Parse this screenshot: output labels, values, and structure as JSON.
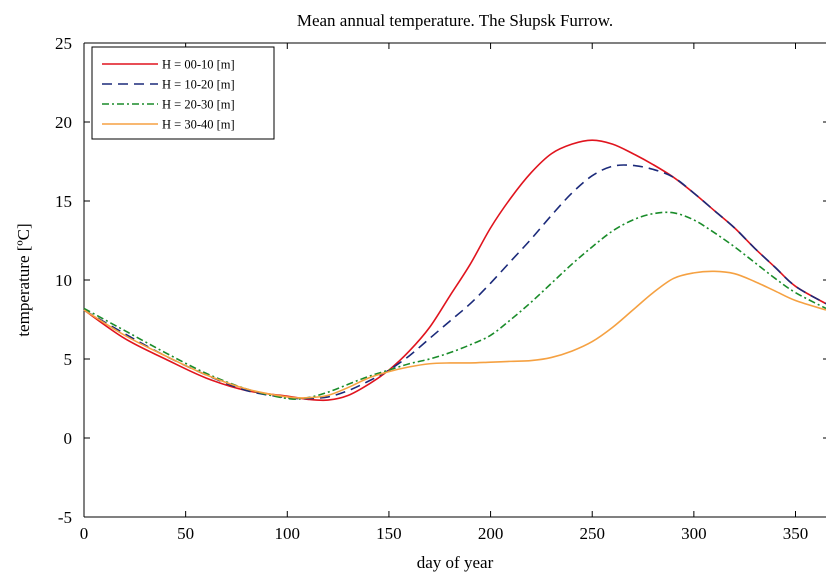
{
  "chart_data": {
    "type": "line",
    "title": "Mean annual temperature. The Słupsk Furrow.",
    "xlabel": "day of year",
    "ylabel": "temperature [ºC]",
    "xlim": [
      0,
      365
    ],
    "ylim": [
      -5,
      25
    ],
    "xticks": [
      0,
      50,
      100,
      150,
      200,
      250,
      300,
      350
    ],
    "xtick_labels": [
      "0",
      "50",
      "100",
      "150",
      "200",
      "250",
      "300",
      "350"
    ],
    "yticks": [
      -5,
      0,
      5,
      10,
      15,
      20,
      25
    ],
    "ytick_labels": [
      "-5",
      "0",
      "5",
      "10",
      "15",
      "20",
      "25"
    ],
    "grid": false,
    "legend_position": "top-left",
    "x": [
      0,
      20,
      40,
      60,
      80,
      100,
      110,
      120,
      130,
      140,
      150,
      160,
      170,
      180,
      190,
      200,
      210,
      220,
      230,
      240,
      250,
      260,
      270,
      280,
      290,
      300,
      310,
      320,
      330,
      340,
      350,
      365
    ],
    "series": [
      {
        "name": "H = 00-10 [m]",
        "color": "#e0141e",
        "dash": "solid",
        "values": [
          8.1,
          6.3,
          5.0,
          3.8,
          3.0,
          2.65,
          2.45,
          2.4,
          2.7,
          3.4,
          4.3,
          5.5,
          7.0,
          9.0,
          11.0,
          13.3,
          15.2,
          16.8,
          18.0,
          18.6,
          18.85,
          18.6,
          18.0,
          17.3,
          16.5,
          15.5,
          14.4,
          13.3,
          12.0,
          10.8,
          9.6,
          8.5
        ]
      },
      {
        "name": "H = 10-20 [m]",
        "color": "#1b2a7a",
        "dash": "10,6",
        "values": [
          8.1,
          6.6,
          5.2,
          4.0,
          3.0,
          2.55,
          2.5,
          2.6,
          3.0,
          3.6,
          4.3,
          5.2,
          6.3,
          7.4,
          8.5,
          9.8,
          11.2,
          12.6,
          14.1,
          15.5,
          16.6,
          17.2,
          17.25,
          17.0,
          16.5,
          15.5,
          14.4,
          13.3,
          12.0,
          10.8,
          9.6,
          8.5
        ]
      },
      {
        "name": "H = 20-30 [m]",
        "color": "#1a8c2a",
        "dash": "7,3,2,3",
        "values": [
          8.2,
          6.8,
          5.4,
          4.1,
          3.1,
          2.5,
          2.55,
          2.9,
          3.4,
          3.9,
          4.3,
          4.7,
          5.0,
          5.4,
          5.9,
          6.5,
          7.5,
          8.6,
          9.8,
          11.0,
          12.1,
          13.1,
          13.8,
          14.2,
          14.25,
          13.8,
          13.0,
          12.1,
          11.1,
          10.1,
          9.2,
          8.2
        ]
      },
      {
        "name": "H = 30-40 [m]",
        "color": "#f5a142",
        "dash": "solid",
        "values": [
          8.1,
          6.5,
          5.2,
          4.0,
          3.1,
          2.6,
          2.55,
          2.7,
          3.2,
          3.8,
          4.2,
          4.5,
          4.7,
          4.75,
          4.75,
          4.8,
          4.85,
          4.9,
          5.1,
          5.5,
          6.1,
          7.0,
          8.1,
          9.2,
          10.1,
          10.45,
          10.55,
          10.4,
          9.9,
          9.3,
          8.7,
          8.1
        ]
      }
    ]
  }
}
